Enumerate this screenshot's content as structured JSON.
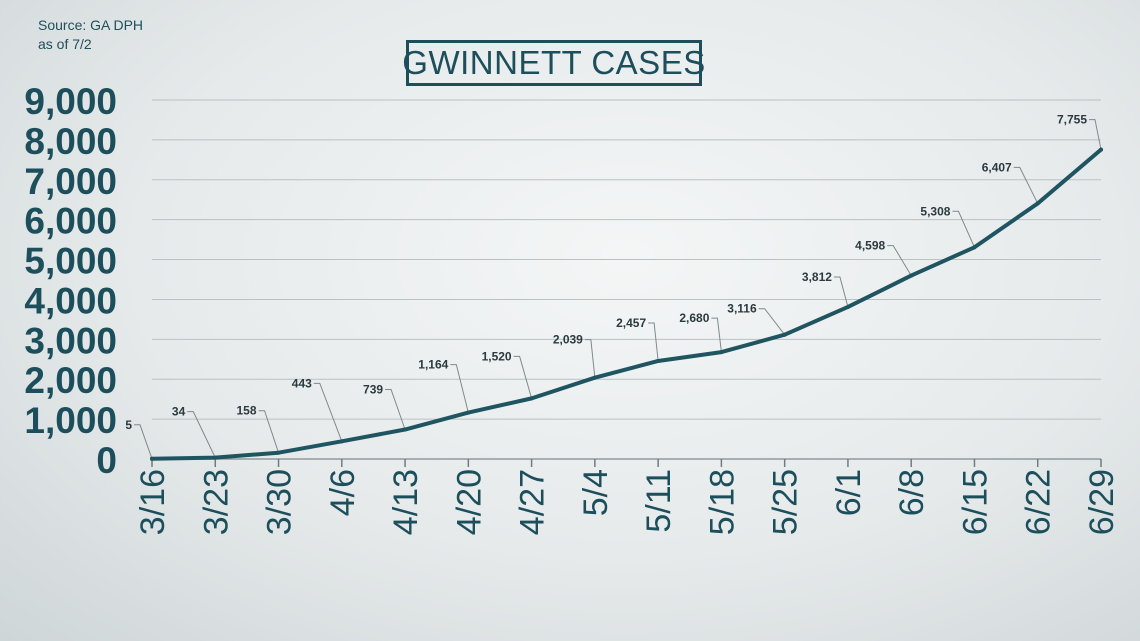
{
  "source": {
    "line1": "Source: GA DPH",
    "line2": "as of 7/2"
  },
  "colors": {
    "line": "#1f5561",
    "axis_text": "#1c4f5b",
    "grid": "#b9c1c4",
    "label": "#2b3a3f"
  },
  "chart_data": {
    "type": "line",
    "title": "GWINNETT CASES",
    "categories": [
      "3/16",
      "3/23",
      "3/30",
      "4/6",
      "4/13",
      "4/20",
      "4/27",
      "5/4",
      "5/11",
      "5/18",
      "5/25",
      "6/1",
      "6/8",
      "6/15",
      "6/22",
      "6/29"
    ],
    "values": [
      5,
      34,
      158,
      443,
      739,
      1164,
      1520,
      2039,
      2457,
      2680,
      3116,
      3812,
      4598,
      5308,
      6407,
      7755
    ],
    "data_labels": [
      "5",
      "34",
      "158",
      "443",
      "739",
      "1,164",
      "1,520",
      "2,039",
      "2,457",
      "2,680",
      "3,116",
      "3,812",
      "4,598",
      "5,308",
      "6,407",
      "7,755"
    ],
    "ylim": [
      0,
      9000
    ],
    "yticks": [
      0,
      1000,
      2000,
      3000,
      4000,
      5000,
      6000,
      7000,
      8000,
      9000
    ],
    "ytick_labels": [
      "0",
      "1,000",
      "2,000",
      "3,000",
      "4,000",
      "5,000",
      "6,000",
      "7,000",
      "8,000",
      "9,000"
    ],
    "xlabel": "",
    "ylabel": "",
    "grid": true,
    "legend": "none"
  }
}
